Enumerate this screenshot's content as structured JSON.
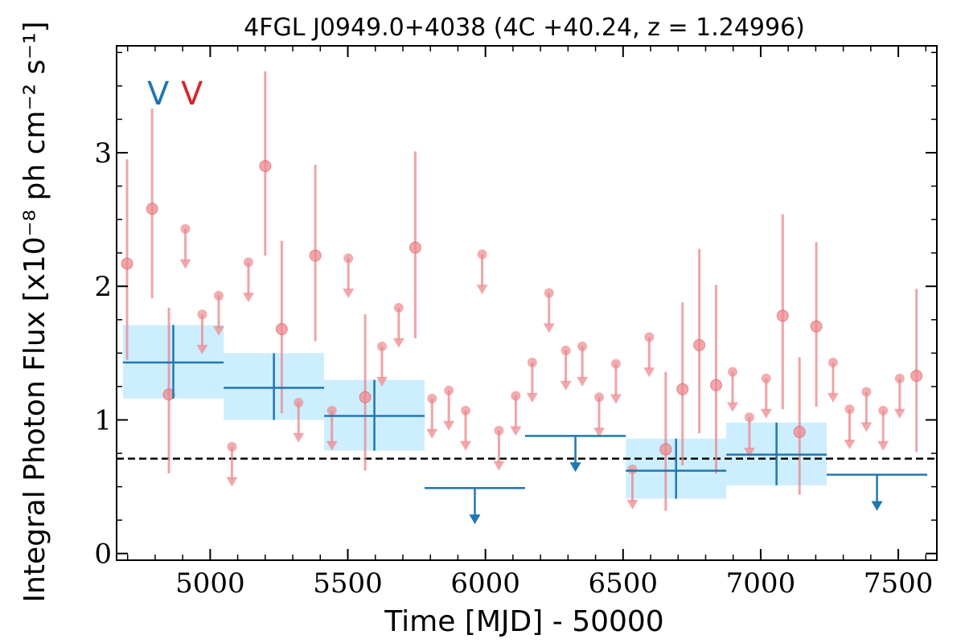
{
  "colors": {
    "annual": "#1f77b4",
    "annual_band": "#cdeeff",
    "monthly": "#e8878b",
    "monthly_fill": "#ed8a8e",
    "reference_line": "#000000"
  },
  "chart_data": {
    "type": "scatter",
    "title": "4FGL J0949.0+4038 (4C +40.24, z = 1.24996)",
    "xlabel": "Time [MJD] - 50000",
    "ylabel": "Integral Photon Flux [x10⁻⁸ ph cm⁻² s⁻¹]",
    "xlim": [
      4660,
      7640
    ],
    "ylim": [
      -0.05,
      3.8
    ],
    "xticks": [
      5000,
      5500,
      6000,
      6500,
      7000,
      7500
    ],
    "xtick_labels": [
      "5000",
      "5500",
      "6000",
      "6500",
      "7000",
      "7500"
    ],
    "yticks": [
      0,
      1,
      2,
      3
    ],
    "ytick_labels": [
      "0",
      "1",
      "2",
      "3"
    ],
    "legend_letters": [
      {
        "text": "V",
        "series": "annual",
        "color": "#1f77b4"
      },
      {
        "text": "V",
        "series": "monthly",
        "color": "#d62728"
      }
    ],
    "reference_line": {
      "y": 0.71,
      "style": "dashed"
    },
    "series": [
      {
        "id": "annual",
        "points": [
          {
            "x0": 4683,
            "x1": 5049,
            "y": 1.43,
            "lo": 1.16,
            "hi": 1.71
          },
          {
            "x0": 5049,
            "x1": 5414,
            "y": 1.24,
            "lo": 1.0,
            "hi": 1.5
          },
          {
            "x0": 5414,
            "x1": 5779,
            "y": 1.03,
            "lo": 0.77,
            "hi": 1.3
          },
          {
            "x0": 5779,
            "x1": 6144,
            "y": 0.49,
            "upper_limit": true
          },
          {
            "x0": 6144,
            "x1": 6510,
            "y": 0.88,
            "upper_limit": true
          },
          {
            "x0": 6510,
            "x1": 6875,
            "y": 0.62,
            "lo": 0.41,
            "hi": 0.86
          },
          {
            "x0": 6875,
            "x1": 7240,
            "y": 0.74,
            "lo": 0.51,
            "hi": 0.98
          },
          {
            "x0": 7240,
            "x1": 7605,
            "y": 0.59,
            "upper_limit": true
          }
        ]
      },
      {
        "id": "monthly",
        "detections": [
          {
            "x": 4698,
            "y": 2.17,
            "lo": 1.45,
            "hi": 2.95
          },
          {
            "x": 4789,
            "y": 2.58,
            "lo": 1.91,
            "hi": 3.33
          },
          {
            "x": 4850,
            "y": 1.19,
            "lo": 0.6,
            "hi": 1.84
          },
          {
            "x": 5200,
            "y": 2.9,
            "lo": 2.23,
            "hi": 3.61
          },
          {
            "x": 5260,
            "y": 1.68,
            "lo": 1.05,
            "hi": 2.34
          },
          {
            "x": 5382,
            "y": 2.23,
            "lo": 1.59,
            "hi": 2.91
          },
          {
            "x": 5563,
            "y": 1.17,
            "lo": 0.62,
            "hi": 1.79
          },
          {
            "x": 5745,
            "y": 2.29,
            "lo": 1.61,
            "hi": 3.01
          },
          {
            "x": 6655,
            "y": 0.78,
            "lo": 0.32,
            "hi": 1.36
          },
          {
            "x": 6716,
            "y": 1.23,
            "lo": 0.66,
            "hi": 1.88
          },
          {
            "x": 6777,
            "y": 1.56,
            "lo": 0.9,
            "hi": 2.28
          },
          {
            "x": 6838,
            "y": 1.26,
            "lo": 0.6,
            "hi": 2.01
          },
          {
            "x": 7080,
            "y": 1.78,
            "lo": 1.08,
            "hi": 2.54
          },
          {
            "x": 7141,
            "y": 0.91,
            "lo": 0.44,
            "hi": 1.47
          },
          {
            "x": 7202,
            "y": 1.7,
            "lo": 1.1,
            "hi": 2.33
          },
          {
            "x": 7566,
            "y": 1.33,
            "lo": 0.76,
            "hi": 1.98
          }
        ],
        "upper_limits": [
          {
            "x": 4910,
            "y": 2.43,
            "to": 2.13
          },
          {
            "x": 4971,
            "y": 1.79,
            "to": 1.49
          },
          {
            "x": 5031,
            "y": 1.93,
            "to": 1.63
          },
          {
            "x": 5079,
            "y": 0.8,
            "to": 0.5
          },
          {
            "x": 5139,
            "y": 2.18,
            "to": 1.88
          },
          {
            "x": 5321,
            "y": 1.13,
            "to": 0.83
          },
          {
            "x": 5442,
            "y": 1.07,
            "to": 0.77
          },
          {
            "x": 5502,
            "y": 2.21,
            "to": 1.91
          },
          {
            "x": 5624,
            "y": 1.55,
            "to": 1.25
          },
          {
            "x": 5685,
            "y": 1.84,
            "to": 1.54
          },
          {
            "x": 5806,
            "y": 1.16,
            "to": 0.86
          },
          {
            "x": 5867,
            "y": 1.22,
            "to": 0.92
          },
          {
            "x": 5928,
            "y": 1.07,
            "to": 0.77
          },
          {
            "x": 5988,
            "y": 2.24,
            "to": 1.94
          },
          {
            "x": 6049,
            "y": 0.92,
            "to": 0.62
          },
          {
            "x": 6110,
            "y": 1.18,
            "to": 0.88
          },
          {
            "x": 6170,
            "y": 1.43,
            "to": 1.13
          },
          {
            "x": 6231,
            "y": 1.95,
            "to": 1.65
          },
          {
            "x": 6292,
            "y": 1.52,
            "to": 1.22
          },
          {
            "x": 6352,
            "y": 1.55,
            "to": 1.25
          },
          {
            "x": 6413,
            "y": 1.17,
            "to": 0.87
          },
          {
            "x": 6474,
            "y": 1.42,
            "to": 1.12
          },
          {
            "x": 6534,
            "y": 0.63,
            "to": 0.33
          },
          {
            "x": 6595,
            "y": 1.62,
            "to": 1.32
          },
          {
            "x": 6898,
            "y": 1.36,
            "to": 1.06
          },
          {
            "x": 6959,
            "y": 1.02,
            "to": 0.72
          },
          {
            "x": 7020,
            "y": 1.31,
            "to": 1.01
          },
          {
            "x": 7263,
            "y": 1.43,
            "to": 1.13
          },
          {
            "x": 7323,
            "y": 1.08,
            "to": 0.78
          },
          {
            "x": 7384,
            "y": 1.21,
            "to": 0.91
          },
          {
            "x": 7445,
            "y": 1.07,
            "to": 0.77
          },
          {
            "x": 7505,
            "y": 1.31,
            "to": 1.01
          }
        ]
      }
    ]
  }
}
